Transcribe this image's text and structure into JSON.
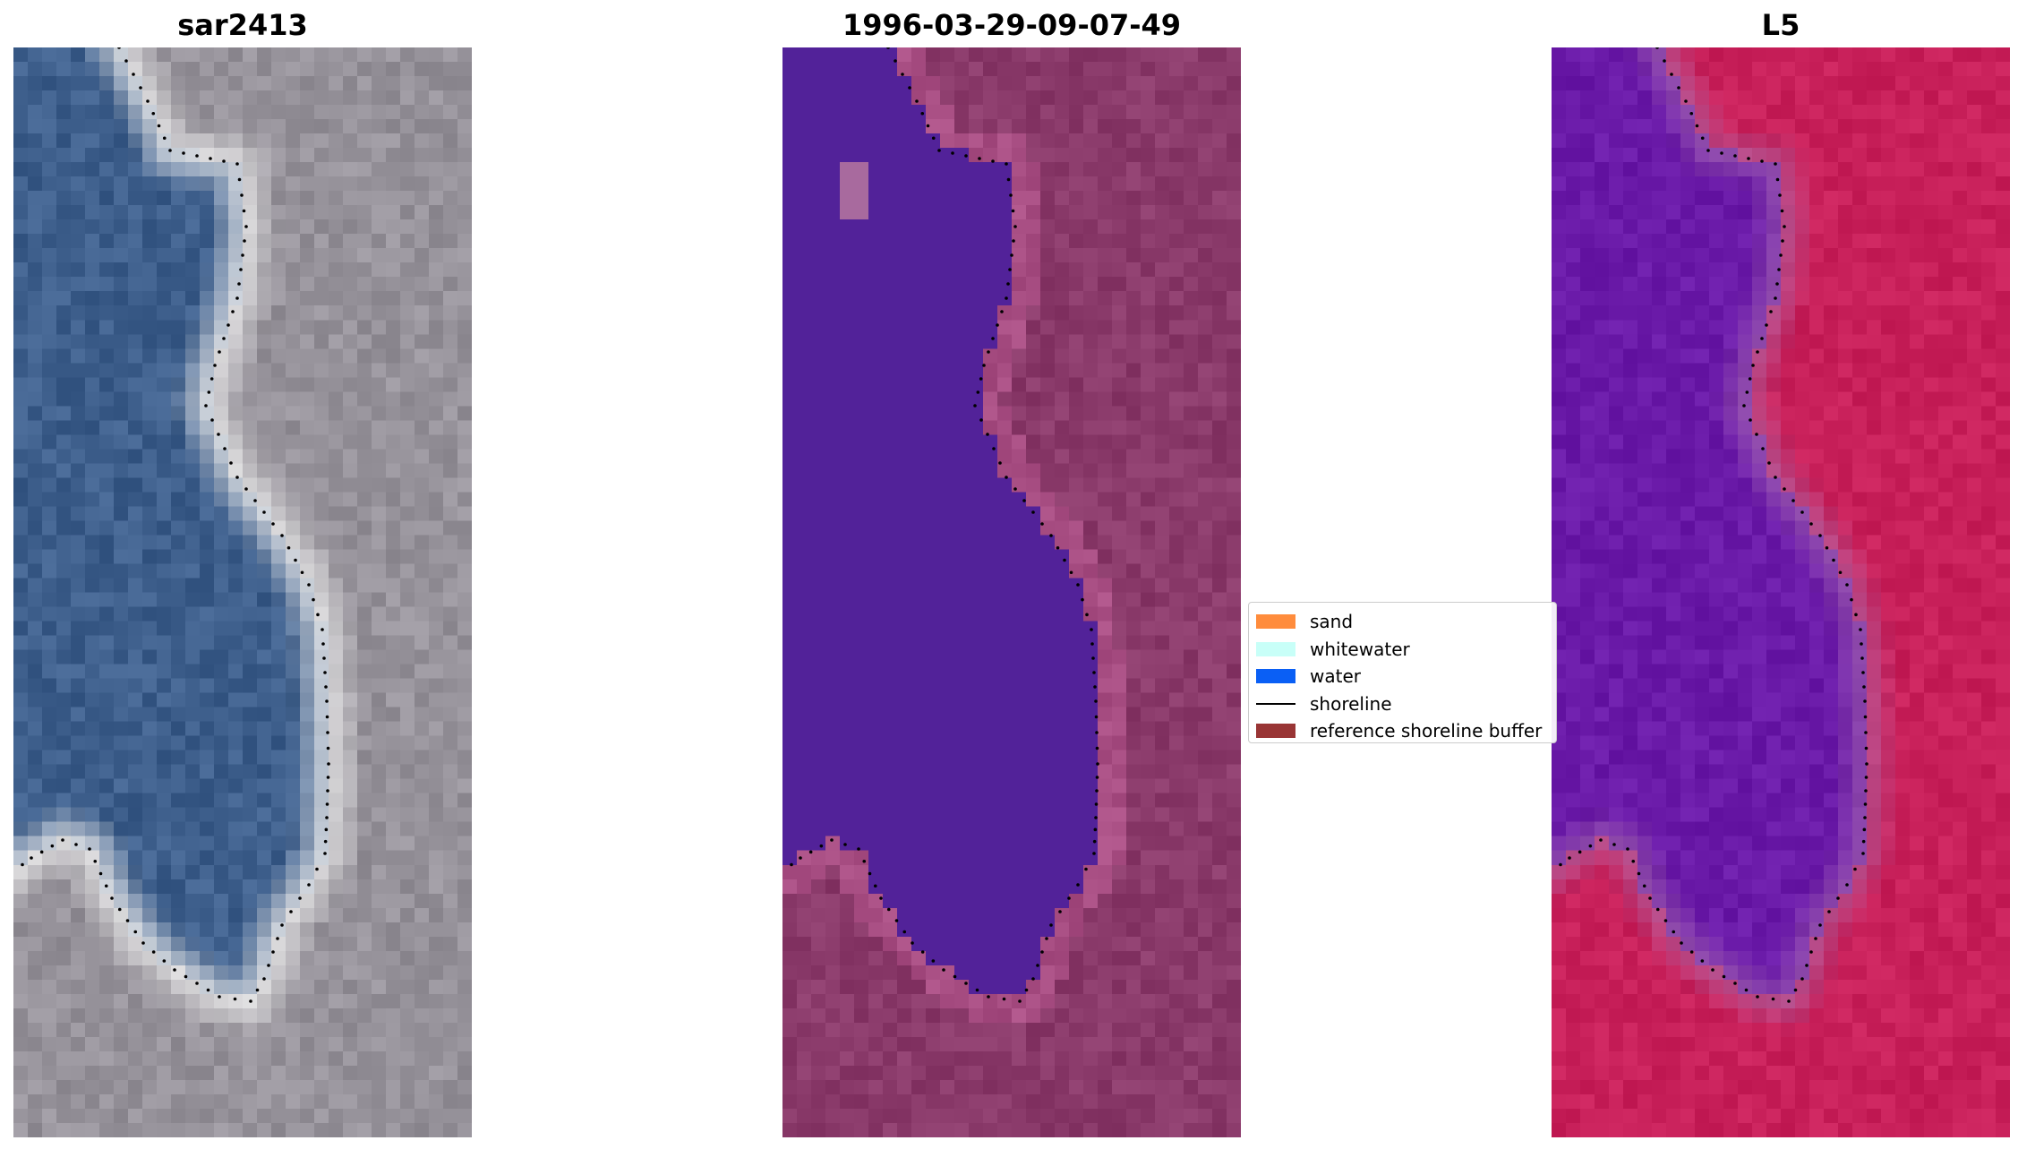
{
  "panels": {
    "left": {
      "title": "sar2413"
    },
    "middle": {
      "title": "1996-03-29-09-07-49"
    },
    "right": {
      "title": "L5"
    }
  },
  "legend": {
    "items": [
      {
        "label": "sand",
        "kind": "patch",
        "color": "#ff8c3c"
      },
      {
        "label": "whitewater",
        "kind": "patch",
        "color": "#c8fff8"
      },
      {
        "label": "water",
        "kind": "patch",
        "color": "#0a5ff5"
      },
      {
        "label": "shoreline",
        "kind": "line",
        "color": "#000000"
      },
      {
        "label": "reference shoreline buffer",
        "kind": "patch",
        "color": "#993535"
      }
    ]
  },
  "colors": {
    "classified_water": "#522299",
    "classified_land": "#8a3a6a",
    "index_water": "#6a1aa8",
    "index_land": "#c8205a",
    "rgb_water": "#3e5f8c",
    "rgb_land": "#8c8890",
    "shoreline_dots": "#000000"
  }
}
